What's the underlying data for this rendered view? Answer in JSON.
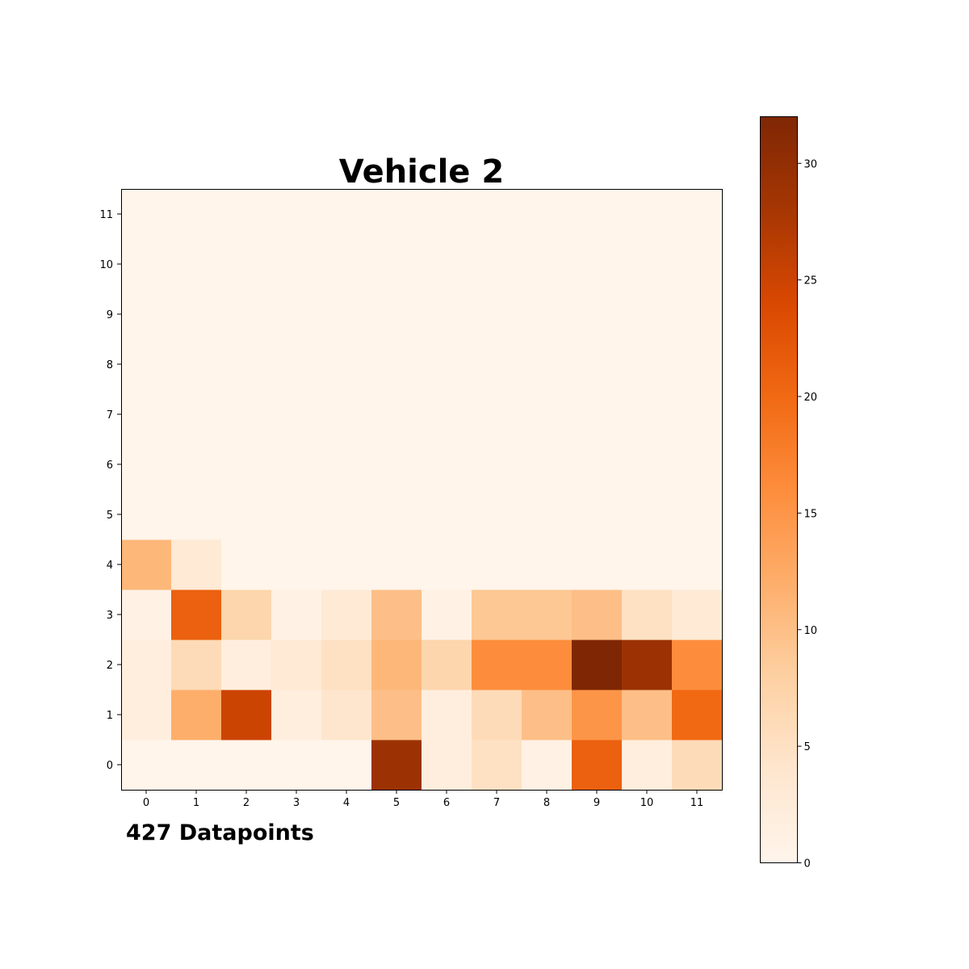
{
  "chart_data": {
    "type": "heatmap",
    "title": "Vehicle 2",
    "annotation": "427 Datapoints",
    "x_ticks": [
      "0",
      "1",
      "2",
      "3",
      "4",
      "5",
      "6",
      "7",
      "8",
      "9",
      "10",
      "11"
    ],
    "y_ticks": [
      "0",
      "1",
      "2",
      "3",
      "4",
      "5",
      "6",
      "7",
      "8",
      "9",
      "10",
      "11"
    ],
    "values": [
      [
        0,
        0,
        0,
        0,
        0,
        29,
        2,
        5,
        1,
        21,
        2,
        6
      ],
      [
        2,
        12,
        25,
        2,
        4,
        10,
        2,
        6,
        10,
        15,
        10,
        20
      ],
      [
        2,
        6,
        2,
        3,
        5,
        11,
        7,
        16,
        16,
        32,
        29,
        16
      ],
      [
        1,
        21,
        7,
        1,
        3,
        10,
        1,
        9,
        9,
        10,
        5,
        3
      ],
      [
        11,
        3,
        0,
        0,
        0,
        0,
        0,
        0,
        0,
        0,
        0,
        0
      ],
      [
        0,
        0,
        0,
        0,
        0,
        0,
        0,
        0,
        0,
        0,
        0,
        0
      ],
      [
        0,
        0,
        0,
        0,
        0,
        0,
        0,
        0,
        0,
        0,
        0,
        0
      ],
      [
        0,
        0,
        0,
        0,
        0,
        0,
        0,
        0,
        0,
        0,
        0,
        0
      ],
      [
        0,
        0,
        0,
        0,
        0,
        0,
        0,
        0,
        0,
        0,
        0,
        0
      ],
      [
        0,
        0,
        0,
        0,
        0,
        0,
        0,
        0,
        0,
        0,
        0,
        0
      ],
      [
        0,
        0,
        0,
        0,
        0,
        0,
        0,
        0,
        0,
        0,
        0,
        0
      ],
      [
        0,
        0,
        0,
        0,
        0,
        0,
        0,
        0,
        0,
        0,
        0,
        0
      ]
    ],
    "colorbar": {
      "range": [
        0,
        32
      ],
      "ticks": [
        "0",
        "5",
        "10",
        "15",
        "20",
        "25",
        "30"
      ],
      "colormap": "Oranges",
      "colors": [
        "#fff5eb",
        "#fee6ce",
        "#fdd0a2",
        "#fdae6b",
        "#fd8d3c",
        "#f16913",
        "#d94801",
        "#a63603",
        "#7f2704"
      ]
    },
    "grid": false
  }
}
